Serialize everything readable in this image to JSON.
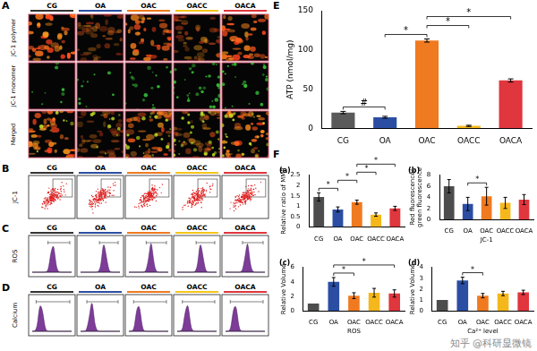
{
  "figure": {
    "groups": [
      {
        "name": "CG",
        "color": "#333333"
      },
      {
        "name": "OA",
        "color": "#2b4ea2"
      },
      {
        "name": "OAC",
        "color": "#f07a20"
      },
      {
        "name": "OACC",
        "color": "#f5c518"
      },
      {
        "name": "OACA",
        "color": "#e0363e"
      }
    ],
    "panel_a": {
      "label": "A",
      "rows": [
        "JC-1 polymer",
        "JC-1 monomer",
        "Merged"
      ]
    },
    "panel_b": {
      "label": "B",
      "row": "JC-1"
    },
    "panel_c": {
      "label": "C",
      "row": "ROS"
    },
    "panel_d": {
      "label": "D",
      "row": "Calcium"
    },
    "panel_e_label": "E",
    "panel_f_label": "F",
    "watermark": "知乎 @科研显微镜"
  },
  "chart_data": [
    {
      "type": "bar",
      "categories": [
        "CG",
        "OA",
        "OAC",
        "OACC",
        "OACA"
      ],
      "values": [
        20,
        14,
        112,
        3,
        61
      ],
      "errors": [
        1.5,
        1.2,
        2,
        0.8,
        2
      ],
      "colors": [
        "#5a5a5a",
        "#2b4ea2",
        "#f07a20",
        "#f5b81c",
        "#e0363e"
      ],
      "ylabel": "ATP (nmol/mg)",
      "ylim": [
        0,
        150
      ],
      "yticks": [
        0,
        50,
        100,
        150
      ],
      "grid": false,
      "significance": [
        {
          "from": "CG",
          "to": "OA",
          "label": "#"
        },
        {
          "from": "OA",
          "to": "OAC",
          "label": "*"
        },
        {
          "from": "OAC",
          "to": "OACC",
          "label": "*"
        },
        {
          "from": "OAC",
          "to": "OACA",
          "label": "*"
        }
      ]
    },
    {
      "type": "bar",
      "title": "(a)",
      "categories": [
        "CG",
        "OA",
        "OAC",
        "OACC",
        "OACA"
      ],
      "values": [
        1.45,
        0.85,
        1.2,
        0.6,
        0.9
      ],
      "errors": [
        0.2,
        0.12,
        0.1,
        0.08,
        0.1
      ],
      "colors": [
        "#4d4d4d",
        "#2b4ea2",
        "#f07a20",
        "#f5b81c",
        "#e0363e"
      ],
      "ylabel": "Relative ratio of MMP",
      "ylim": [
        0,
        2.5
      ],
      "yticks": [
        0,
        0.5,
        1,
        1.5,
        2,
        2.5
      ],
      "grid": false,
      "significance": [
        {
          "from": "CG",
          "to": "OA",
          "label": "*"
        },
        {
          "from": "OA",
          "to": "OAC",
          "label": "*"
        },
        {
          "from": "OAC",
          "to": "OACC",
          "label": "*"
        },
        {
          "from": "OAC",
          "to": "OACA",
          "label": "*"
        }
      ]
    },
    {
      "type": "bar",
      "title": "(b)",
      "categories": [
        "CG",
        "OA",
        "OAC",
        "OACC",
        "OACA"
      ],
      "values": [
        6,
        2.8,
        4.2,
        3,
        3.6
      ],
      "errors": [
        1.2,
        1.2,
        1.6,
        1,
        0.9
      ],
      "colors": [
        "#4d4d4d",
        "#2b4ea2",
        "#f07a20",
        "#f5b81c",
        "#e0363e"
      ],
      "ylabel": [
        "Red fluorescence/",
        "green fluorescence"
      ],
      "xlabel": "JC-1",
      "ylim": [
        0,
        8
      ],
      "yticks": [
        0,
        2,
        4,
        6,
        8
      ],
      "grid": false,
      "significance": [
        {
          "from": "OA",
          "to": "OAC",
          "label": "*"
        }
      ]
    },
    {
      "type": "bar",
      "title": "(c)",
      "categories": [
        "CG",
        "OA",
        "OAC",
        "OACC",
        "OACA"
      ],
      "values": [
        1,
        4,
        2.1,
        2.5,
        2.4
      ],
      "errors": [
        0,
        0.6,
        0.4,
        0.6,
        0.5
      ],
      "colors": [
        "#4d4d4d",
        "#2b4ea2",
        "#f07a20",
        "#f5b81c",
        "#e0363e"
      ],
      "ylabel": "Relative Volume",
      "xlabel": "ROS",
      "ylim": [
        0,
        6
      ],
      "yticks": [
        0,
        2,
        4,
        6
      ],
      "grid": false,
      "significance": [
        {
          "from": "OA",
          "to": "OAC",
          "label": "*"
        },
        {
          "from": "OA",
          "to": "OACA",
          "label": "*"
        }
      ]
    },
    {
      "type": "bar",
      "title": "(d)",
      "categories": [
        "CG",
        "OA",
        "OAC",
        "OACC",
        "OACA"
      ],
      "values": [
        1,
        2.8,
        1.4,
        1.6,
        1.7
      ],
      "errors": [
        0,
        0.3,
        0.2,
        0.2,
        0.2
      ],
      "colors": [
        "#4d4d4d",
        "#2b4ea2",
        "#f07a20",
        "#f5b81c",
        "#e0363e"
      ],
      "ylabel": "Relative Volume",
      "xlabel": "Ca²⁺ level",
      "ylim": [
        0,
        4
      ],
      "yticks": [
        0,
        1,
        2,
        3,
        4
      ],
      "grid": false,
      "significance": [
        {
          "from": "OA",
          "to": "OAC",
          "label": "*"
        }
      ]
    }
  ]
}
